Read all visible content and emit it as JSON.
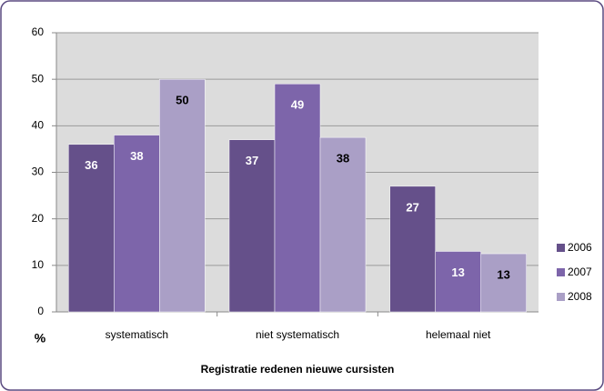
{
  "chart_data": {
    "type": "bar",
    "xlabel": "Registratie redenen nieuwe cursisten",
    "ylabel": "%",
    "categories": [
      "systematisch",
      "niet systematisch",
      "helemaal niet"
    ],
    "series": [
      {
        "name": "2006",
        "color": "#65508a",
        "label_color": "#ffffff",
        "values": [
          36,
          37,
          27
        ]
      },
      {
        "name": "2007",
        "color": "#7d65aa",
        "label_color": "#ffffff",
        "values": [
          38,
          49,
          13
        ]
      },
      {
        "name": "2008",
        "color": "#aa9fc6",
        "label_color": "#000000",
        "values": [
          50,
          37.5,
          12.5
        ],
        "value_labels": [
          "50",
          "38",
          "13"
        ]
      }
    ],
    "ylim": [
      0,
      60
    ],
    "yticks": [
      0,
      10,
      20,
      30,
      40,
      50,
      60
    ],
    "grid": true,
    "legend": "right"
  }
}
